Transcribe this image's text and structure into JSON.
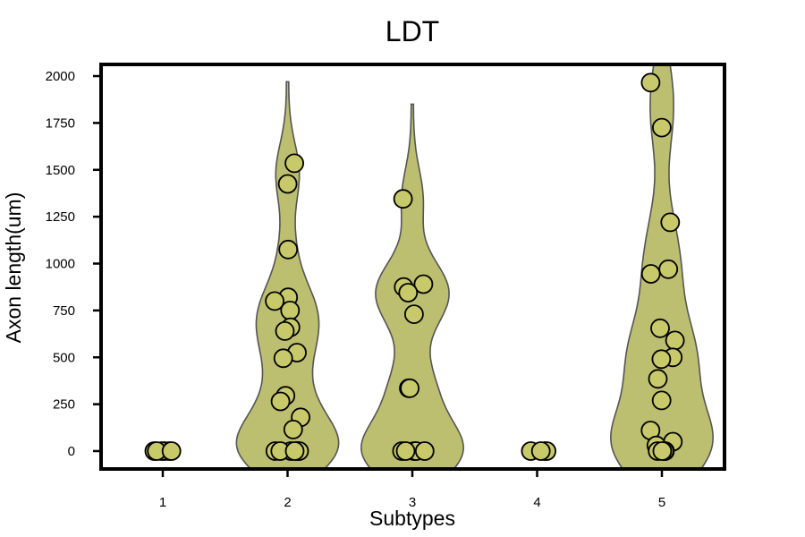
{
  "chart_data": {
    "type": "violin-strip",
    "title": "LDT",
    "xlabel": "Subtypes",
    "ylabel": "Axon length(um)",
    "categories": [
      "1",
      "2",
      "3",
      "4",
      "5"
    ],
    "yticks": [
      0,
      250,
      500,
      750,
      1000,
      1250,
      1500,
      1750,
      2000
    ],
    "ylim": [
      -95,
      2060
    ],
    "grid": false,
    "colors": {
      "fill": "#bcbe70",
      "point": "#c8c96a",
      "outline": "#000000",
      "violin_edge": "#555555"
    },
    "violins": [
      {
        "category": "2",
        "max": 1970
      },
      {
        "category": "3",
        "max": 1850
      },
      {
        "category": "5",
        "max": 2100
      }
    ],
    "series": [
      {
        "category": "1",
        "values": [
          0,
          0,
          0,
          0,
          0,
          0
        ]
      },
      {
        "category": "2",
        "values": [
          1535,
          1425,
          1075,
          820,
          800,
          750,
          660,
          640,
          525,
          495,
          295,
          265,
          180,
          115,
          0,
          0,
          0,
          0,
          0,
          0,
          0
        ]
      },
      {
        "category": "3",
        "values": [
          1345,
          890,
          875,
          845,
          730,
          335,
          335,
          0,
          0,
          0,
          0,
          0
        ]
      },
      {
        "category": "4",
        "values": [
          0,
          0,
          0,
          0
        ]
      },
      {
        "category": "5",
        "values": [
          1965,
          1725,
          1220,
          970,
          945,
          655,
          590,
          500,
          490,
          385,
          270,
          110,
          50,
          30,
          0,
          0,
          0,
          0
        ]
      }
    ]
  }
}
